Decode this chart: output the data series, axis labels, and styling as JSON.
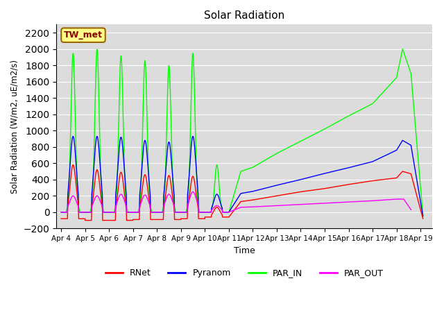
{
  "title": "Solar Radiation",
  "ylabel": "Solar Radiation (W/m2, uE/m2/s)",
  "xlabel": "Time",
  "ylim": [
    -200,
    2300
  ],
  "yticks": [
    -200,
    0,
    200,
    400,
    600,
    800,
    1000,
    1200,
    1400,
    1600,
    1800,
    2000,
    2200
  ],
  "station_label": "TW_met",
  "bg_color": "#dcdcdc",
  "series_colors": {
    "RNet": "#ff0000",
    "Pyranom": "#0000ff",
    "PAR_IN": "#00ff00",
    "PAR_OUT": "#ff00ff"
  },
  "legend_labels": [
    "RNet",
    "Pyranom",
    "PAR_IN",
    "PAR_OUT"
  ],
  "x_tick_labels": [
    "Apr 4",
    "Apr 5",
    "Apr 6",
    "Apr 7",
    "Apr 8",
    "Apr 9",
    "Apr 10",
    "Apr 11",
    "Apr 12",
    "Apr 13",
    "Apr 14",
    "Apr 15",
    "Apr 16",
    "Apr 17",
    "Apr 18",
    "Apr 19"
  ],
  "x_tick_positions": [
    4,
    5,
    6,
    7,
    8,
    9,
    10,
    11,
    12,
    13,
    14,
    15,
    16,
    17,
    18,
    19
  ],
  "xlim": [
    3.8,
    19.5
  ],
  "peaks_rnet": [
    580,
    520,
    490,
    460,
    450,
    440,
    60
  ],
  "peaks_pyra": [
    930,
    930,
    920,
    880,
    860,
    930,
    220
  ],
  "peaks_par_in": [
    1950,
    2000,
    1920,
    1860,
    1800,
    1950,
    580
  ],
  "peaks_par_out": [
    200,
    200,
    220,
    210,
    220,
    250,
    80
  ],
  "troughs_rnet": [
    -80,
    -100,
    -100,
    -90,
    -90,
    -80,
    -60
  ],
  "sparse_par_in_x": [
    11.5,
    12.0,
    13.0,
    14.0,
    15.0,
    16.0,
    17.0,
    18.0,
    18.25,
    18.6,
    19.1
  ],
  "sparse_par_in_y": [
    500,
    550,
    720,
    870,
    1020,
    1180,
    1330,
    1650,
    2000,
    1700,
    -50
  ],
  "sparse_pyra_x": [
    11.5,
    12.0,
    13.0,
    14.0,
    15.0,
    16.0,
    17.0,
    18.0,
    18.25,
    18.6,
    19.1
  ],
  "sparse_pyra_y": [
    230,
    255,
    330,
    400,
    475,
    545,
    620,
    760,
    880,
    820,
    -50
  ],
  "sparse_rnet_x": [
    11.5,
    12.0,
    13.0,
    14.0,
    15.0,
    16.0,
    17.0,
    18.0,
    18.25,
    18.6,
    19.1
  ],
  "sparse_rnet_y": [
    130,
    150,
    200,
    250,
    290,
    340,
    385,
    420,
    500,
    470,
    -80
  ],
  "sparse_par_out_x": [
    11.5,
    12.0,
    13.0,
    14.0,
    15.0,
    16.0,
    17.0,
    18.0,
    18.3,
    18.6
  ],
  "sparse_par_out_y": [
    60,
    65,
    80,
    95,
    110,
    125,
    140,
    160,
    160,
    30
  ]
}
